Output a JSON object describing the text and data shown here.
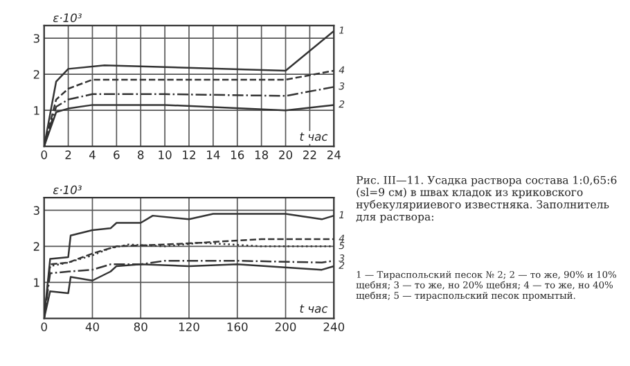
{
  "chart_data": [
    {
      "type": "line",
      "xlabel": "t час",
      "ylabel": "ε·10³",
      "xlim": [
        0,
        24
      ],
      "ylim": [
        0,
        3.35
      ],
      "xticks": [
        0,
        2,
        4,
        6,
        8,
        10,
        12,
        14,
        16,
        18,
        20,
        22,
        24
      ],
      "yticks": [
        1,
        2,
        3
      ],
      "grid": true,
      "series": [
        {
          "name": "1",
          "color": "#333333",
          "line_style": "solid",
          "x": [
            0,
            1,
            2,
            5,
            10,
            20,
            24
          ],
          "values": [
            0,
            1.8,
            2.15,
            2.25,
            2.2,
            2.1,
            3.2
          ]
        },
        {
          "name": "4",
          "color": "#333333",
          "line_style": "dashed",
          "x": [
            0,
            1,
            2,
            4,
            10,
            20,
            24
          ],
          "values": [
            0,
            1.3,
            1.6,
            1.85,
            1.85,
            1.85,
            2.1
          ]
        },
        {
          "name": "3",
          "color": "#333333",
          "line_style": "dashdot",
          "x": [
            0,
            1,
            2,
            4,
            10,
            20,
            24
          ],
          "values": [
            0,
            1.1,
            1.3,
            1.45,
            1.45,
            1.4,
            1.65
          ]
        },
        {
          "name": "2",
          "color": "#333333",
          "line_style": "solid",
          "x": [
            0,
            1,
            2,
            4,
            10,
            20,
            24
          ],
          "values": [
            0,
            0.95,
            1.05,
            1.15,
            1.15,
            1.0,
            1.15
          ]
        }
      ]
    },
    {
      "type": "line",
      "xlabel": "t час",
      "ylabel": "ε·10³",
      "xlim": [
        0,
        240
      ],
      "ylim": [
        0,
        3.35
      ],
      "xticks": [
        0,
        40,
        80,
        120,
        160,
        200,
        240
      ],
      "yticks": [
        1,
        2,
        3
      ],
      "grid": true,
      "series": [
        {
          "name": "1",
          "color": "#333333",
          "line_style": "solid",
          "x": [
            0,
            5,
            20,
            22,
            40,
            55,
            60,
            80,
            90,
            120,
            140,
            200,
            230,
            240
          ],
          "values": [
            0,
            1.65,
            1.7,
            2.3,
            2.45,
            2.5,
            2.65,
            2.65,
            2.85,
            2.75,
            2.9,
            2.9,
            2.75,
            2.85
          ]
        },
        {
          "name": "5",
          "color": "#333333",
          "line_style": "dotted",
          "x": [
            0,
            5,
            20,
            40,
            55,
            70,
            100,
            130,
            180,
            240
          ],
          "values": [
            0,
            1.45,
            1.55,
            1.75,
            1.95,
            2.05,
            2.0,
            2.1,
            2.0,
            2.0
          ]
        },
        {
          "name": "4",
          "color": "#333333",
          "line_style": "dashed",
          "x": [
            0,
            5,
            20,
            40,
            60,
            100,
            130,
            180,
            240
          ],
          "values": [
            0,
            1.5,
            1.55,
            1.8,
            2.0,
            2.05,
            2.1,
            2.2,
            2.2
          ]
        },
        {
          "name": "3",
          "color": "#333333",
          "line_style": "dashdot",
          "x": [
            0,
            5,
            20,
            40,
            55,
            80,
            100,
            160,
            230,
            240
          ],
          "values": [
            0,
            1.25,
            1.3,
            1.35,
            1.5,
            1.5,
            1.6,
            1.6,
            1.55,
            1.6
          ]
        },
        {
          "name": "2",
          "color": "#333333",
          "line_style": "solid",
          "x": [
            0,
            5,
            20,
            22,
            40,
            55,
            60,
            80,
            120,
            160,
            230,
            240
          ],
          "values": [
            0,
            0.75,
            0.7,
            1.15,
            1.05,
            1.3,
            1.45,
            1.5,
            1.45,
            1.5,
            1.35,
            1.45
          ]
        }
      ],
      "annotations": [
        "Рис. III—11. Усадка раствора состава 1:0,65:6 (sl=9 см) в швах кладок из криковского нубекулярииевого известняка. Заполнитель для раствора:",
        "1 — Тираспольский песок № 2; 2 — то же, 90% и 10% щебня; 3 — то же, но 20% щебня; 4 — то же, но 40% щебня; 5 — тираспольский песок промытый."
      ]
    }
  ]
}
